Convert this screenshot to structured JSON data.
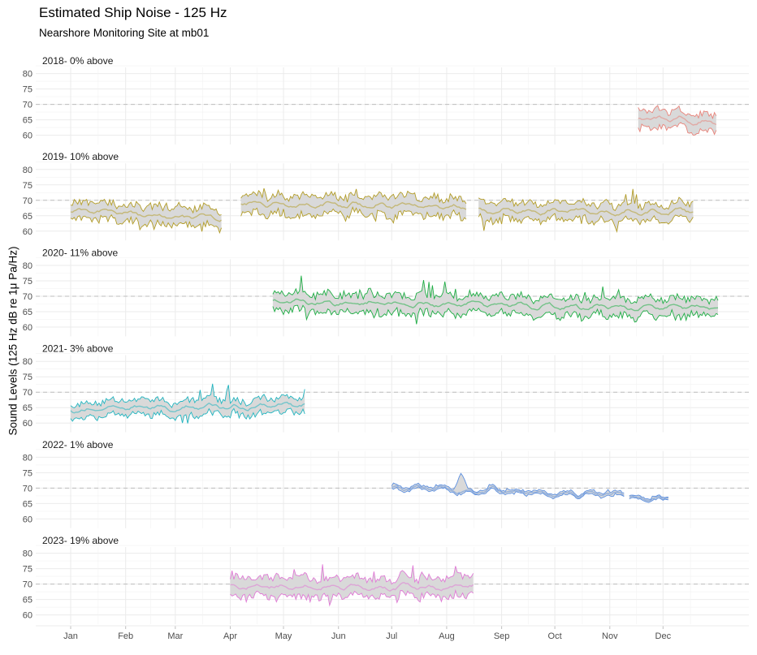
{
  "chart_data": {
    "type": "area",
    "title": "Estimated Ship Noise - 125 Hz",
    "subtitle": "Nearshore Monitoring Site at mb01",
    "ylabel": "Sound Levels (125 Hz dB re 1μ Pa/Hz)",
    "xlabel": "",
    "x_ticks": [
      "Jan",
      "Feb",
      "Mar",
      "Apr",
      "May",
      "Jun",
      "Jul",
      "Aug",
      "Sep",
      "Oct",
      "Nov",
      "Dec"
    ],
    "y_ticks": [
      60,
      65,
      70,
      75,
      80
    ],
    "ylim": [
      57,
      82
    ],
    "threshold": 70,
    "grid": true,
    "legend": "none",
    "panels": [
      {
        "label": "2018- 0% above",
        "color": "#e8837a",
        "segments": [
          {
            "start": 321,
            "end": 365,
            "median": 65,
            "amp": 2.5,
            "spike": 4,
            "seed": 3,
            "trend": -1
          }
        ]
      },
      {
        "label": "2019- 10% above",
        "color": "#b39d28",
        "segments": [
          {
            "start": 1,
            "end": 86,
            "median": 65.5,
            "amp": 2.5,
            "spike": 5,
            "seed": 11,
            "trend": -2
          },
          {
            "start": 97,
            "end": 224,
            "median": 68.5,
            "amp": 2.8,
            "spike": 5,
            "seed": 17,
            "trend": -1
          },
          {
            "start": 231,
            "end": 352,
            "median": 66.5,
            "amp": 2.5,
            "spike": 6,
            "seed": 23,
            "trend": 0
          }
        ]
      },
      {
        "label": "2020- 11% above",
        "color": "#1fae45",
        "segments": [
          {
            "start": 115,
            "end": 366,
            "median": 67,
            "amp": 2.6,
            "spike": 5,
            "seed": 31,
            "trend": -2
          }
        ]
      },
      {
        "label": "2021- 3% above",
        "color": "#21b5c0",
        "segments": [
          {
            "start": 1,
            "end": 133,
            "median": 65,
            "amp": 2.2,
            "spike": 5,
            "seed": 41,
            "trend": 2
          }
        ]
      },
      {
        "label": "2022- 1% above",
        "color": "#5b8fe0",
        "segments": [
          {
            "start": 182,
            "end": 313,
            "median": 69,
            "amp": 0.5,
            "spike": 1,
            "seed": 51,
            "trend": -2,
            "bump": [
              221,
              6
            ]
          },
          {
            "start": 316,
            "end": 338,
            "median": 67.2,
            "amp": 0.4,
            "spike": 0.5,
            "seed": 53,
            "trend": 0
          }
        ]
      },
      {
        "label": "2023- 19% above",
        "color": "#e07ad6",
        "segments": [
          {
            "start": 91,
            "end": 228,
            "median": 69,
            "amp": 2.8,
            "spike": 4,
            "seed": 61,
            "trend": 0
          }
        ]
      }
    ]
  }
}
